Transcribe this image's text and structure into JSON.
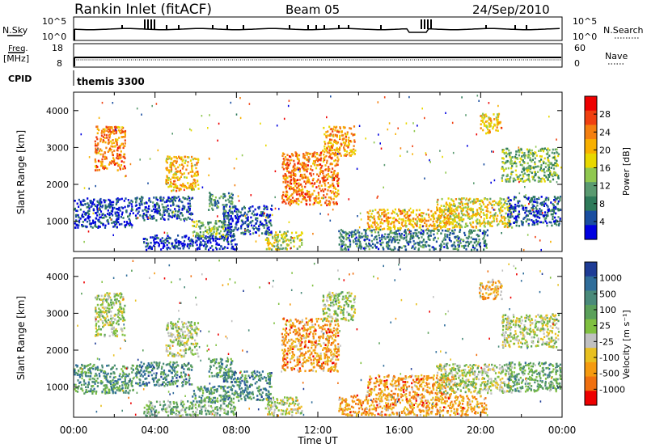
{
  "header": {
    "station": "Rankin Inlet (fitACF)",
    "beam": "Beam 05",
    "date": "24/Sep/2010"
  },
  "top_panels": {
    "nsky": {
      "left_label": "N.Sky",
      "right_label": "N.Search",
      "left_ticks": [
        "10^5",
        "10^0"
      ],
      "right_ticks": [
        "10^5",
        "10^0"
      ]
    },
    "freq": {
      "left_label_line1": "Freq.",
      "left_label_line2": "[MHz]",
      "right_label": "Nave",
      "left_ticks": [
        "18",
        "8"
      ],
      "right_ticks": [
        "60",
        "0"
      ]
    },
    "cpid": {
      "label": "CPID",
      "value": "themis 3300"
    }
  },
  "chart_data": [
    {
      "type": "heatmap",
      "title": "",
      "xlabel": "",
      "ylabel": "Slant Range [km]",
      "colorbar_label": "Power [dB]",
      "colorbar_ticks": [
        "28",
        "24",
        "20",
        "16",
        "12",
        "8",
        "4"
      ],
      "colorbar_colors": [
        "#ee0000",
        "#f04010",
        "#f47f10",
        "#f8b000",
        "#e8d800",
        "#90c850",
        "#5a9a70",
        "#2e7a5a",
        "#1a4ea0",
        "#0000e0"
      ],
      "ylim": [
        180,
        4500
      ],
      "y_ticks": [
        1000,
        2000,
        3000,
        4000
      ],
      "x_range_hours": [
        0,
        24
      ],
      "regions": [
        {
          "t0": 0.0,
          "t1": 2.9,
          "r0": 850,
          "r1": 1650,
          "level": 0.9
        },
        {
          "t0": 3.0,
          "t1": 5.8,
          "r0": 1050,
          "r1": 1700,
          "level": 0.85
        },
        {
          "t0": 3.4,
          "t1": 8.0,
          "r0": 250,
          "r1": 650,
          "level": 0.9
        },
        {
          "t0": 5.8,
          "t1": 7.6,
          "r0": 600,
          "r1": 1050,
          "level": 0.6
        },
        {
          "t0": 7.3,
          "t1": 9.7,
          "r0": 650,
          "r1": 1450,
          "level": 0.85
        },
        {
          "t0": 6.6,
          "t1": 7.8,
          "r0": 1300,
          "r1": 1800,
          "level": 0.7
        },
        {
          "t0": 9.4,
          "t1": 11.2,
          "r0": 250,
          "r1": 750,
          "level": 0.5
        },
        {
          "t0": 10.2,
          "t1": 13.0,
          "r0": 1450,
          "r1": 2900,
          "level": 0.25
        },
        {
          "t0": 12.2,
          "t1": 13.8,
          "r0": 2800,
          "r1": 3600,
          "level": 0.3
        },
        {
          "t0": 13.0,
          "t1": 20.3,
          "r0": 250,
          "r1": 800,
          "level": 0.75
        },
        {
          "t0": 14.4,
          "t1": 18.8,
          "r0": 800,
          "r1": 1350,
          "level": 0.35
        },
        {
          "t0": 17.8,
          "t1": 21.5,
          "r0": 850,
          "r1": 1650,
          "level": 0.45
        },
        {
          "t0": 21.3,
          "t1": 23.9,
          "r0": 900,
          "r1": 1700,
          "level": 0.85
        },
        {
          "t0": 21.0,
          "t1": 23.8,
          "r0": 2100,
          "r1": 3000,
          "level": 0.6
        },
        {
          "t0": 1.0,
          "t1": 2.5,
          "r0": 2400,
          "r1": 3600,
          "level": 0.25
        },
        {
          "t0": 4.5,
          "t1": 6.1,
          "r0": 1850,
          "r1": 2800,
          "level": 0.35
        },
        {
          "t0": 19.9,
          "t1": 21.0,
          "r0": 3400,
          "r1": 3950,
          "level": 0.4
        }
      ]
    },
    {
      "type": "heatmap",
      "title": "",
      "xlabel": "Time UT",
      "ylabel": "Slant Range [km]",
      "colorbar_label": "Velocity [m s⁻¹]",
      "colorbar_ticks": [
        "1000",
        "500",
        "100",
        "25",
        "-25",
        "-100",
        "-500",
        "-1000"
      ],
      "colorbar_colors": [
        "#1e3c96",
        "#2f6d9a",
        "#4a8a7a",
        "#5aa05a",
        "#80c040",
        "#c0c0c0",
        "#e8c020",
        "#f59a10",
        "#f07010",
        "#ee0000"
      ],
      "ylim": [
        180,
        4500
      ],
      "y_ticks": [
        1000,
        2000,
        3000,
        4000
      ],
      "x_ticks": [
        "00:00",
        "04:00",
        "08:00",
        "12:00",
        "16:00",
        "20:00",
        "00:00"
      ],
      "x_range_hours": [
        0,
        24
      ],
      "regions": [
        {
          "t0": 0.0,
          "t1": 2.9,
          "r0": 850,
          "r1": 1650,
          "level": 0.3
        },
        {
          "t0": 3.0,
          "t1": 5.8,
          "r0": 1050,
          "r1": 1700,
          "level": 0.25
        },
        {
          "t0": 3.4,
          "t1": 8.0,
          "r0": 250,
          "r1": 650,
          "level": 0.4
        },
        {
          "t0": 5.8,
          "t1": 7.6,
          "r0": 600,
          "r1": 1050,
          "level": 0.3
        },
        {
          "t0": 7.3,
          "t1": 9.7,
          "r0": 650,
          "r1": 1450,
          "level": 0.25
        },
        {
          "t0": 6.6,
          "t1": 7.8,
          "r0": 1300,
          "r1": 1800,
          "level": 0.3
        },
        {
          "t0": 9.4,
          "t1": 11.2,
          "r0": 250,
          "r1": 750,
          "level": 0.55
        },
        {
          "t0": 10.2,
          "t1": 13.0,
          "r0": 1450,
          "r1": 2900,
          "level": 0.75
        },
        {
          "t0": 12.2,
          "t1": 13.8,
          "r0": 2800,
          "r1": 3600,
          "level": 0.5
        },
        {
          "t0": 13.0,
          "t1": 20.3,
          "r0": 250,
          "r1": 800,
          "level": 0.75
        },
        {
          "t0": 14.4,
          "t1": 18.8,
          "r0": 800,
          "r1": 1350,
          "level": 0.75
        },
        {
          "t0": 17.8,
          "t1": 21.5,
          "r0": 850,
          "r1": 1650,
          "level": 0.5
        },
        {
          "t0": 21.3,
          "t1": 23.9,
          "r0": 900,
          "r1": 1700,
          "level": 0.35
        },
        {
          "t0": 21.0,
          "t1": 23.8,
          "r0": 2100,
          "r1": 3000,
          "level": 0.52
        },
        {
          "t0": 1.0,
          "t1": 2.5,
          "r0": 2400,
          "r1": 3600,
          "level": 0.5
        },
        {
          "t0": 4.5,
          "t1": 6.1,
          "r0": 1850,
          "r1": 2800,
          "level": 0.5
        },
        {
          "t0": 19.9,
          "t1": 21.0,
          "r0": 3400,
          "r1": 3950,
          "level": 0.7
        }
      ]
    }
  ],
  "colors": {
    "axis": "#000000",
    "background": "#ffffff"
  }
}
